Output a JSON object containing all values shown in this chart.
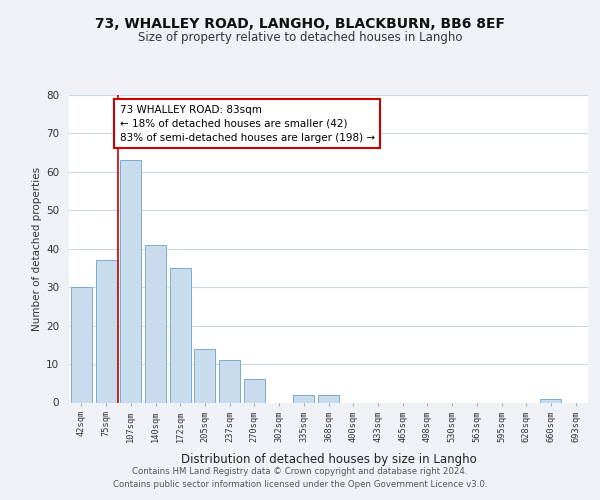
{
  "title": "73, WHALLEY ROAD, LANGHO, BLACKBURN, BB6 8EF",
  "subtitle": "Size of property relative to detached houses in Langho",
  "xlabel": "Distribution of detached houses by size in Langho",
  "ylabel": "Number of detached properties",
  "bar_color": "#c8dced",
  "bar_edge_color": "#7aaecb",
  "bins": [
    "42sqm",
    "75sqm",
    "107sqm",
    "140sqm",
    "172sqm",
    "205sqm",
    "237sqm",
    "270sqm",
    "302sqm",
    "335sqm",
    "368sqm",
    "400sqm",
    "433sqm",
    "465sqm",
    "498sqm",
    "530sqm",
    "563sqm",
    "595sqm",
    "628sqm",
    "660sqm",
    "693sqm"
  ],
  "values": [
    30,
    37,
    63,
    41,
    35,
    14,
    11,
    6,
    0,
    2,
    2,
    0,
    0,
    0,
    0,
    0,
    0,
    0,
    0,
    1,
    0
  ],
  "ylim": [
    0,
    80
  ],
  "yticks": [
    0,
    10,
    20,
    30,
    40,
    50,
    60,
    70,
    80
  ],
  "property_line_x": 1.5,
  "property_line_color": "#cc0000",
  "annotation_text": "73 WHALLEY ROAD: 83sqm\n← 18% of detached houses are smaller (42)\n83% of semi-detached houses are larger (198) →",
  "annotation_box_color": "#ffffff",
  "annotation_box_edge_color": "#cc0000",
  "footer_line1": "Contains HM Land Registry data © Crown copyright and database right 2024.",
  "footer_line2": "Contains public sector information licensed under the Open Government Licence v3.0.",
  "background_color": "#eef2f7",
  "plot_background_color": "#ffffff",
  "grid_color": "#c8d8e8",
  "title_fontsize": 10,
  "subtitle_fontsize": 8.5
}
